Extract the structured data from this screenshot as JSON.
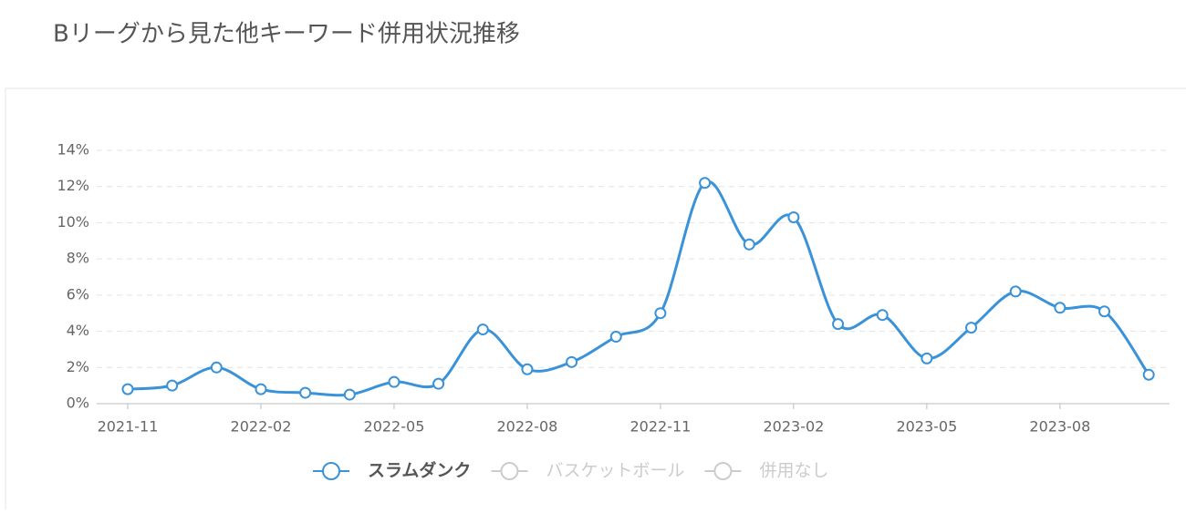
{
  "chart_data": {
    "type": "line",
    "title": "Bリーグから見た他キーワード併用状況推移",
    "categories": [
      "2021-11",
      null,
      null,
      "2022-02",
      null,
      null,
      "2022-05",
      null,
      null,
      "2022-08",
      null,
      null,
      "2022-11",
      null,
      null,
      "2023-02",
      null,
      null,
      "2023-05",
      null,
      null,
      "2023-08",
      null,
      null
    ],
    "series": [
      {
        "name": "スラムダンク",
        "color": "#3a92d8",
        "values": [
          0.8,
          1.0,
          2.0,
          0.8,
          0.6,
          0.5,
          1.2,
          1.1,
          4.1,
          1.9,
          2.3,
          3.7,
          5.0,
          12.2,
          8.8,
          10.3,
          4.4,
          4.9,
          2.5,
          4.2,
          6.2,
          5.3,
          5.1,
          1.6
        ]
      }
    ],
    "legend_inactive": [
      "バスケットボール",
      "併用なし"
    ],
    "inactive_color": "#cccccc",
    "ylim": [
      0,
      14
    ],
    "yticks": [
      {
        "value": 0,
        "label": "0%"
      },
      {
        "value": 2,
        "label": "2%"
      },
      {
        "value": 4,
        "label": "4%"
      },
      {
        "value": 6,
        "label": "6%"
      },
      {
        "value": 8,
        "label": "8%"
      },
      {
        "value": 10,
        "label": "10%"
      },
      {
        "value": 12,
        "label": "12%"
      },
      {
        "value": 14,
        "label": "14%"
      }
    ],
    "grid": true
  }
}
